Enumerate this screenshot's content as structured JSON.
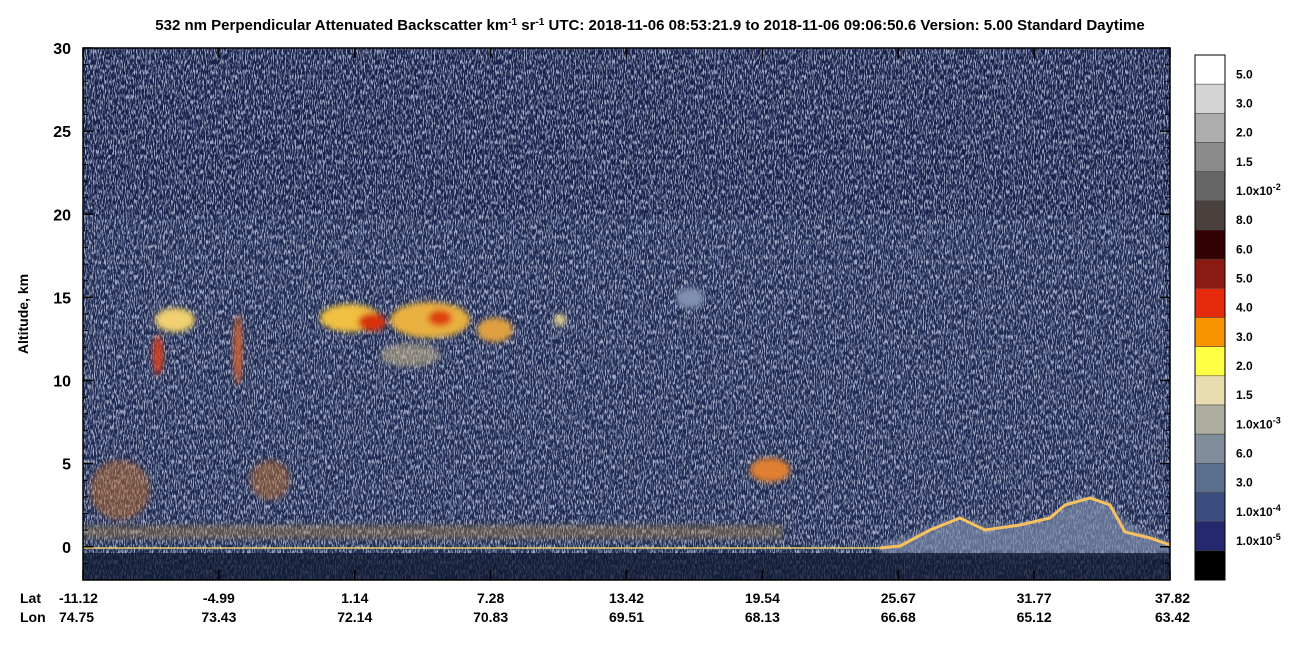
{
  "chart_data": {
    "type": "lidar-curtain",
    "title": [
      "532 nm Perpendicular Attenuated Backscatter km",
      "-1",
      " sr",
      "-1",
      "  UTC: 2018-11-06 08:53:21.9 to 2018-11-06 09:06:50.6  Version: 5.00 Standard Daytime"
    ],
    "ylabel": "Altitude, km",
    "ylim": [
      -2,
      30
    ],
    "yticks": [
      0,
      5,
      10,
      15,
      20,
      25,
      30
    ],
    "x_rows": [
      "Lat",
      "Lon"
    ],
    "lat": [
      -11.12,
      -4.99,
      1.14,
      7.28,
      13.42,
      19.54,
      25.67,
      31.77,
      37.82
    ],
    "lon": [
      74.75,
      73.43,
      72.14,
      70.83,
      69.51,
      68.13,
      66.68,
      65.12,
      63.42
    ],
    "colorbar": {
      "colors": [
        "#ffffff",
        "#d4d4d4",
        "#adadad",
        "#8a8a8a",
        "#666666",
        "#4a403d",
        "#330303",
        "#8b1a12",
        "#e62a0c",
        "#f79400",
        "#ffff44",
        "#e9dcae",
        "#aeaea0",
        "#7f8c9a",
        "#5a6f8e",
        "#3c4d80",
        "#26286e",
        "#000000"
      ],
      "labels": [
        "5.0",
        "3.0",
        "2.0",
        "1.5",
        [
          "1.0x10",
          "-2"
        ],
        "8.0",
        "6.0",
        "5.0",
        "4.0",
        "3.0",
        "2.0",
        "1.5",
        [
          "1.0x10",
          "-3"
        ],
        "6.0",
        "3.0",
        [
          "1.0x10",
          "-4"
        ],
        [
          "1.0x10",
          "-5"
        ]
      ]
    }
  }
}
